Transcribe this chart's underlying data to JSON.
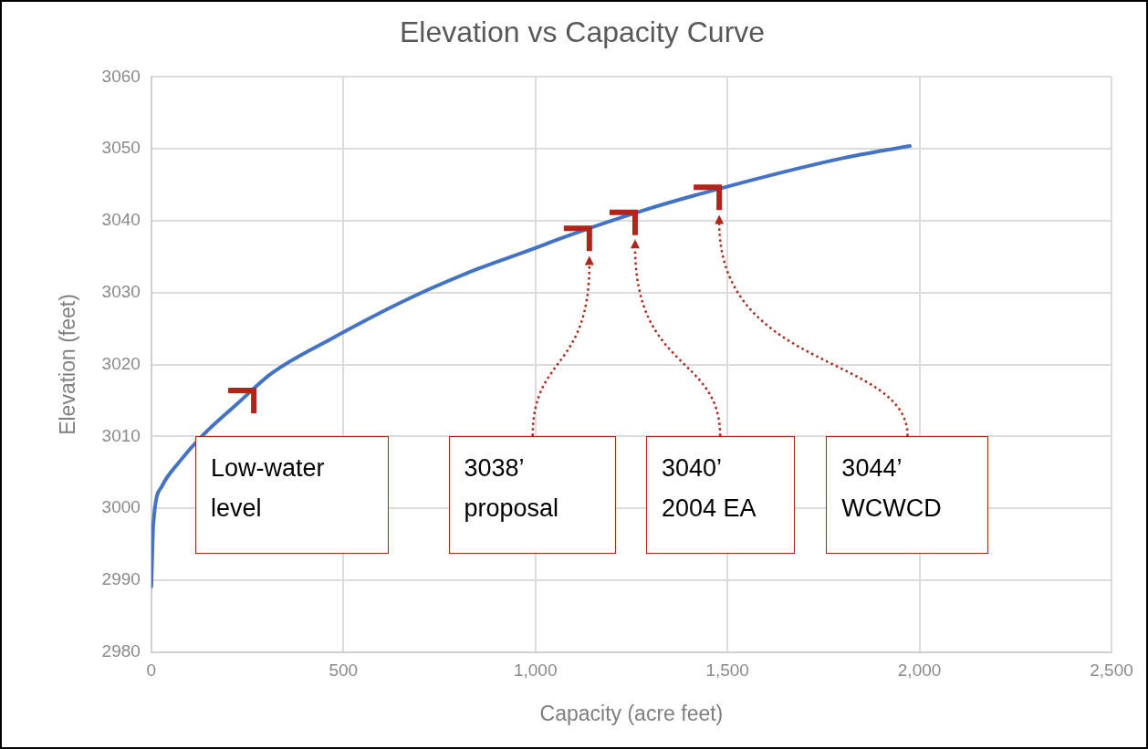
{
  "chart_data": {
    "type": "line",
    "title": "Elevation vs Capacity Curve",
    "xlabel": "Capacity (acre feet)",
    "ylabel": "Elevation (feet)",
    "x": [
      0,
      5,
      28,
      72,
      135,
      225,
      314,
      466,
      672,
      850,
      995,
      1043,
      1285,
      1510,
      1800,
      1975
    ],
    "series": [
      {
        "color": "#4472c4",
        "values": [
          2989.1,
          2997.7,
          3003.1,
          3006.4,
          3010.2,
          3014.6,
          3018.8,
          3023.5,
          3029.2,
          3033.3,
          3036.1,
          3037.1,
          3041.5,
          3044.9,
          3048.7,
          3050.4
        ]
      }
    ],
    "xlim": [
      0,
      2500
    ],
    "xticks": [
      0,
      500,
      {
        "value": 1000,
        "label": "1,000"
      },
      {
        "value": 1500,
        "label": "1,500"
      },
      {
        "value": 2000,
        "label": "2,000"
      },
      {
        "value": 2500,
        "label": "2,500"
      }
    ],
    "ylim": [
      2980,
      3060
    ],
    "yticks": [
      2980,
      2990,
      3000,
      3010,
      3020,
      3030,
      3040,
      3050,
      3060
    ],
    "grid": true,
    "legend": false,
    "marker": "none",
    "line_style": "solid",
    "annotations": [
      "Low-water level",
      "3038’ proposal",
      "3040’ 2004 EA",
      "3044’ WCWCD"
    ]
  }
}
